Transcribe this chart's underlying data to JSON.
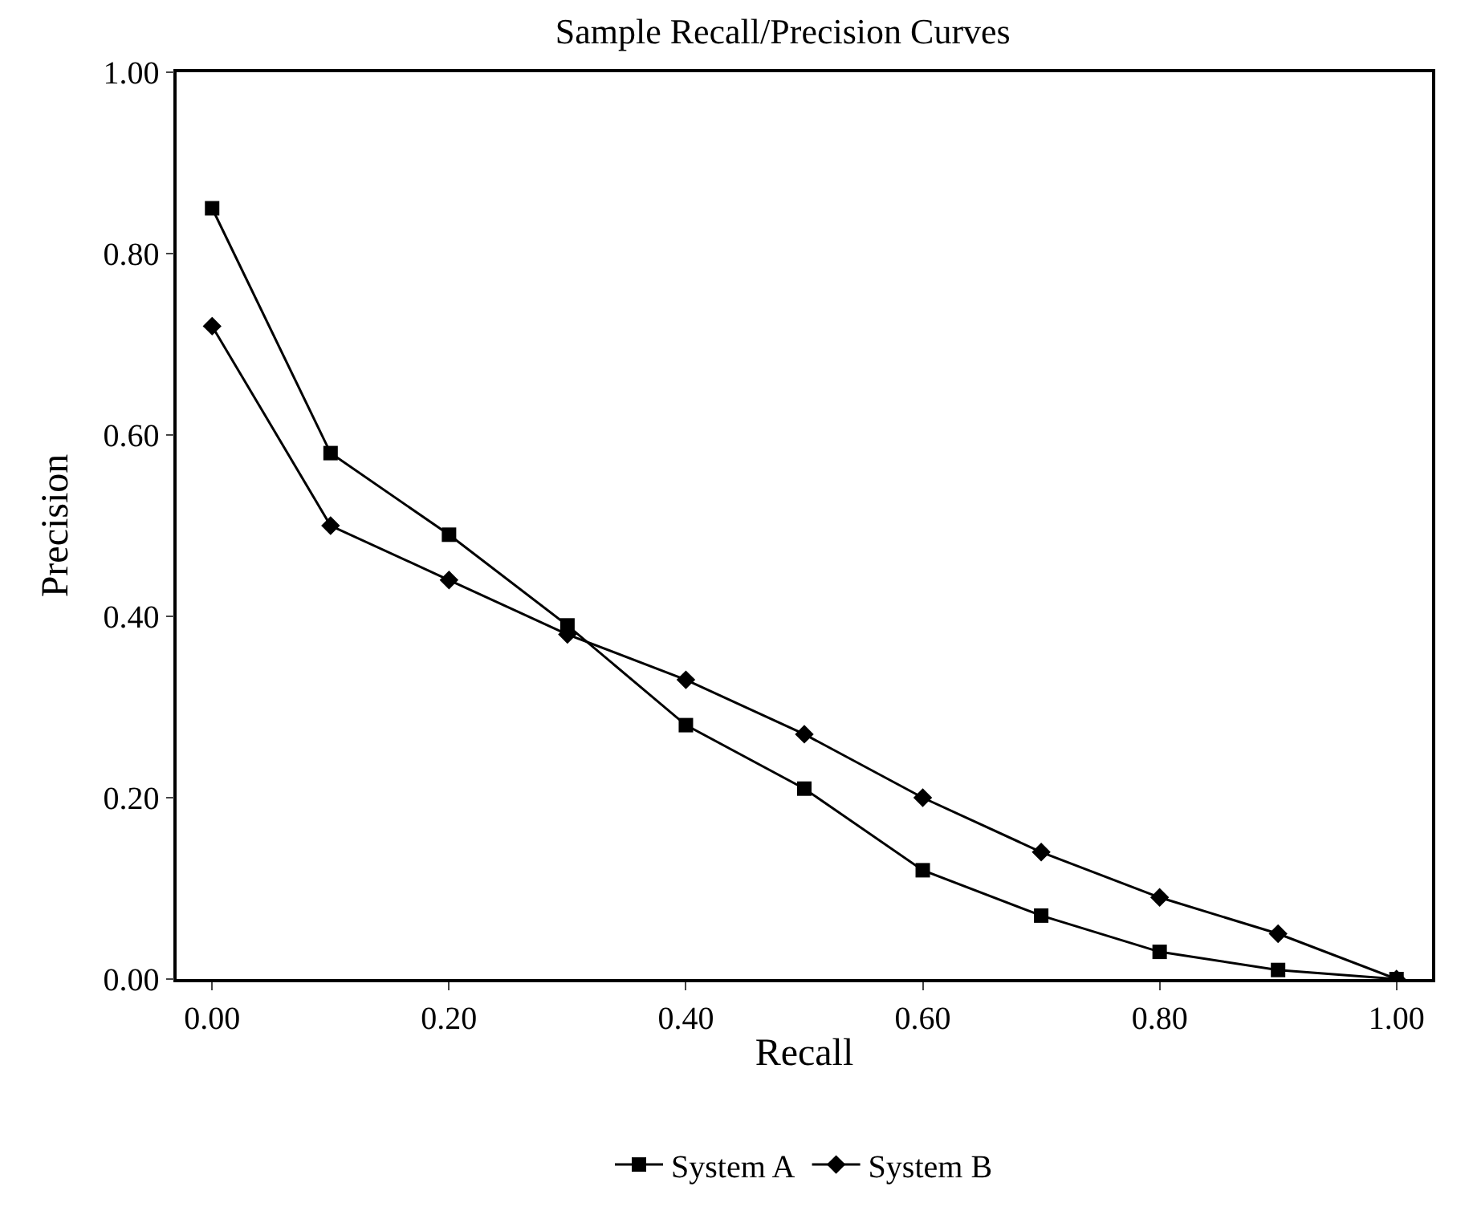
{
  "chart_data": {
    "type": "line",
    "title": "Sample Recall/Precision Curves",
    "xlabel": "Recall",
    "ylabel": "Precision",
    "x": [
      0,
      0.1,
      0.2,
      0.3,
      0.4,
      0.5,
      0.6,
      0.7,
      0.8,
      0.9,
      1.0
    ],
    "series": [
      {
        "name": "System A",
        "color": "#000000",
        "marker": "square",
        "values": [
          0.85,
          0.58,
          0.49,
          0.39,
          0.28,
          0.21,
          0.12,
          0.07,
          0.03,
          0.01,
          0.0
        ]
      },
      {
        "name": "System B",
        "color": "#000000",
        "marker": "diamond",
        "values": [
          0.72,
          0.5,
          0.44,
          0.38,
          0.33,
          0.27,
          0.2,
          0.14,
          0.09,
          0.05,
          0.0
        ]
      }
    ],
    "xlim": [
      -0.03,
      1.03
    ],
    "ylim": [
      0,
      1
    ],
    "xticks": [
      {
        "value": 0,
        "label": "0.00"
      },
      {
        "value": 0.2,
        "label": "0.20"
      },
      {
        "value": 0.4,
        "label": "0.40"
      },
      {
        "value": 0.6,
        "label": "0.60"
      },
      {
        "value": 0.8,
        "label": "0.80"
      },
      {
        "value": 1.0,
        "label": "1.00"
      }
    ],
    "yticks": [
      {
        "value": 0,
        "label": "0.00"
      },
      {
        "value": 0.2,
        "label": "0.20"
      },
      {
        "value": 0.4,
        "label": "0.40"
      },
      {
        "value": 0.6,
        "label": "0.60"
      },
      {
        "value": 0.8,
        "label": "0.80"
      },
      {
        "value": 1.0,
        "label": "1.00"
      }
    ],
    "legend": "bottom",
    "line_style": "solid"
  }
}
